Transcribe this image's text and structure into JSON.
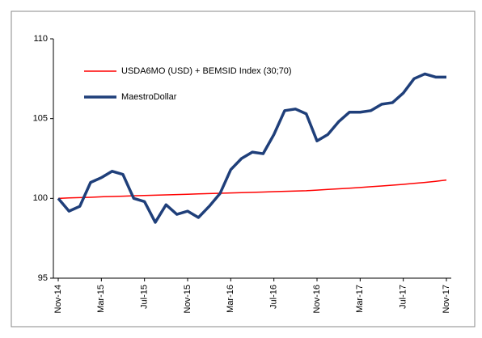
{
  "chart_data": {
    "type": "line",
    "categories": [
      "Nov-14",
      null,
      null,
      null,
      "Mar-15",
      null,
      null,
      null,
      "Jul-15",
      null,
      null,
      null,
      "Nov-15",
      null,
      null,
      null,
      "Mar-16",
      null,
      null,
      null,
      "Jul-16",
      null,
      null,
      null,
      "Nov-16",
      null,
      null,
      null,
      "Mar-17",
      null,
      null,
      null,
      "Jul-17",
      null,
      null,
      null,
      "Nov-17"
    ],
    "series": [
      {
        "name": "USDA6MO (USD) + BEMSID Index (30;70)",
        "color": "#ff0000",
        "values": [
          100.0,
          100.03,
          100.05,
          100.07,
          100.1,
          100.12,
          100.14,
          100.16,
          100.18,
          100.2,
          100.22,
          100.24,
          100.26,
          100.28,
          100.3,
          100.32,
          100.34,
          100.36,
          100.38,
          100.4,
          100.42,
          100.44,
          100.46,
          100.48,
          100.52,
          100.56,
          100.6,
          100.64,
          100.68,
          100.73,
          100.78,
          100.83,
          100.88,
          100.94,
          101.0,
          101.07,
          101.15
        ]
      },
      {
        "name": "MaestroDollar",
        "color": "#1f3f7a",
        "values": [
          100.0,
          99.2,
          99.5,
          101.0,
          101.3,
          101.7,
          101.5,
          100.0,
          99.8,
          98.5,
          99.6,
          99.0,
          99.2,
          98.8,
          99.5,
          100.3,
          101.8,
          102.5,
          102.9,
          102.8,
          104.0,
          105.5,
          105.6,
          105.3,
          103.6,
          104.0,
          104.8,
          105.4,
          105.4,
          105.5,
          105.9,
          106.0,
          106.6,
          107.5,
          107.8,
          107.6,
          107.6
        ]
      }
    ],
    "ylim": [
      95,
      110
    ],
    "yticks": [
      95,
      100,
      105,
      110
    ]
  }
}
